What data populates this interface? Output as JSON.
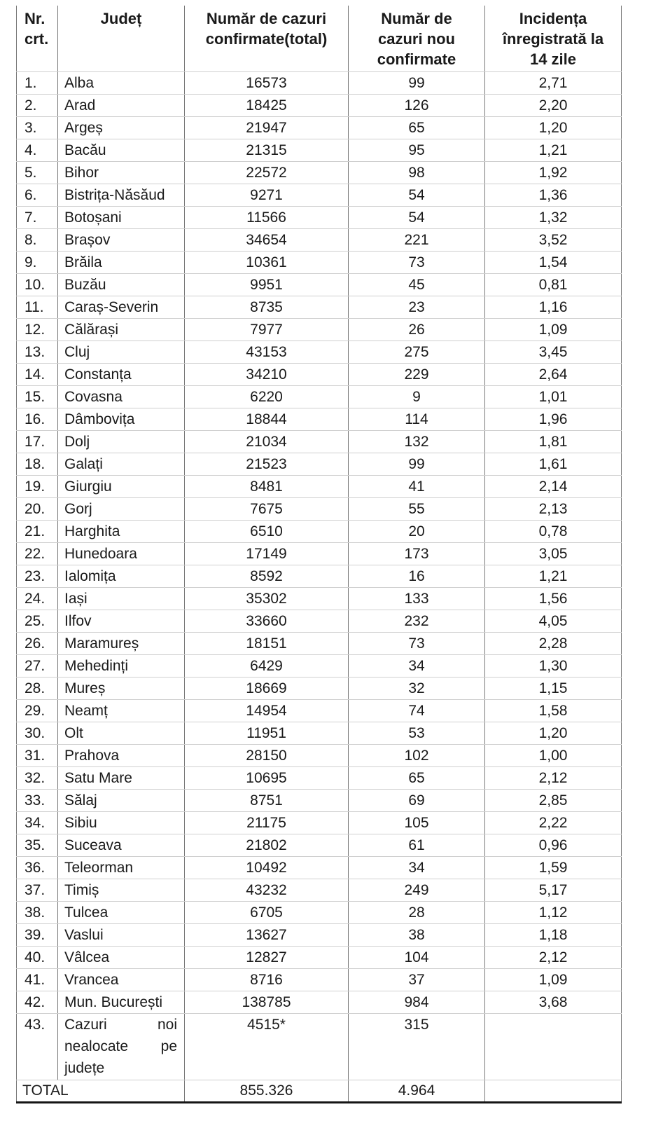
{
  "table": {
    "headers": [
      {
        "lines": [
          "Nr.",
          "crt."
        ]
      },
      {
        "lines": [
          "Județ"
        ]
      },
      {
        "lines": [
          "Număr de cazuri",
          "confirmate(total)"
        ]
      },
      {
        "lines": [
          "Număr de",
          "cazuri nou",
          "confirmate"
        ]
      },
      {
        "lines": [
          "Incidența",
          "înregistrată la",
          "14 zile"
        ]
      }
    ],
    "rows": [
      [
        "1.",
        "Alba",
        "16573",
        "99",
        "2,71"
      ],
      [
        "2.",
        "Arad",
        "18425",
        "126",
        "2,20"
      ],
      [
        "3.",
        "Argeș",
        "21947",
        "65",
        "1,20"
      ],
      [
        "4.",
        "Bacău",
        "21315",
        "95",
        "1,21"
      ],
      [
        "5.",
        "Bihor",
        "22572",
        "98",
        "1,92"
      ],
      [
        "6.",
        "Bistrița-Năsăud",
        "9271",
        "54",
        "1,36"
      ],
      [
        "7.",
        "Botoșani",
        "11566",
        "54",
        "1,32"
      ],
      [
        "8.",
        "Brașov",
        "34654",
        "221",
        "3,52"
      ],
      [
        "9.",
        "Brăila",
        "10361",
        "73",
        "1,54"
      ],
      [
        "10.",
        "Buzău",
        "9951",
        "45",
        "0,81"
      ],
      [
        "11.",
        "Caraș-Severin",
        "8735",
        "23",
        "1,16"
      ],
      [
        "12.",
        "Călărași",
        "7977",
        "26",
        "1,09"
      ],
      [
        "13.",
        "Cluj",
        "43153",
        "275",
        "3,45"
      ],
      [
        "14.",
        "Constanța",
        "34210",
        "229",
        "2,64"
      ],
      [
        "15.",
        "Covasna",
        "6220",
        "9",
        "1,01"
      ],
      [
        "16.",
        "Dâmbovița",
        "18844",
        "114",
        "1,96"
      ],
      [
        "17.",
        "Dolj",
        "21034",
        "132",
        "1,81"
      ],
      [
        "18.",
        "Galați",
        "21523",
        "99",
        "1,61"
      ],
      [
        "19.",
        "Giurgiu",
        "8481",
        "41",
        "2,14"
      ],
      [
        "20.",
        "Gorj",
        "7675",
        "55",
        "2,13"
      ],
      [
        "21.",
        "Harghita",
        "6510",
        "20",
        "0,78"
      ],
      [
        "22.",
        "Hunedoara",
        "17149",
        "173",
        "3,05"
      ],
      [
        "23.",
        "Ialomița",
        "8592",
        "16",
        "1,21"
      ],
      [
        "24.",
        "Iași",
        "35302",
        "133",
        "1,56"
      ],
      [
        "25.",
        "Ilfov",
        "33660",
        "232",
        "4,05"
      ],
      [
        "26.",
        "Maramureș",
        "18151",
        "73",
        "2,28"
      ],
      [
        "27.",
        "Mehedinți",
        "6429",
        "34",
        "1,30"
      ],
      [
        "28.",
        "Mureș",
        "18669",
        "32",
        "1,15"
      ],
      [
        "29.",
        "Neamț",
        "14954",
        "74",
        "1,58"
      ],
      [
        "30.",
        "Olt",
        "11951",
        "53",
        "1,20"
      ],
      [
        "31.",
        "Prahova",
        "28150",
        "102",
        "1,00"
      ],
      [
        "32.",
        "Satu Mare",
        "10695",
        "65",
        "2,12"
      ],
      [
        "33.",
        "Sălaj",
        "8751",
        "69",
        "2,85"
      ],
      [
        "34.",
        "Sibiu",
        "21175",
        "105",
        "2,22"
      ],
      [
        "35.",
        "Suceava",
        "21802",
        "61",
        "0,96"
      ],
      [
        "36.",
        "Teleorman",
        "10492",
        "34",
        "1,59"
      ],
      [
        "37.",
        "Timiș",
        "43232",
        "249",
        "5,17"
      ],
      [
        "38.",
        "Tulcea",
        "6705",
        "28",
        "1,12"
      ],
      [
        "39.",
        "Vaslui",
        "13627",
        "38",
        "1,18"
      ],
      [
        "40.",
        "Vâlcea",
        "12827",
        "104",
        "2,12"
      ],
      [
        "41.",
        "Vrancea",
        "8716",
        "37",
        "1,09"
      ],
      [
        "42.",
        "Mun. București",
        "138785",
        "984",
        "3,68"
      ]
    ],
    "unallocated_row": {
      "nr": "43.",
      "name": "Cazuri noi nealocate pe județe",
      "name_lines": [
        [
          "Cazuri",
          "noi"
        ],
        [
          "nealocate",
          "pe"
        ],
        [
          "județe"
        ]
      ],
      "total": "4515*",
      "new": "315",
      "incidence": ""
    },
    "total_row": {
      "label": "TOTAL",
      "total": "855.326",
      "new": "4.964",
      "incidence": ""
    }
  }
}
